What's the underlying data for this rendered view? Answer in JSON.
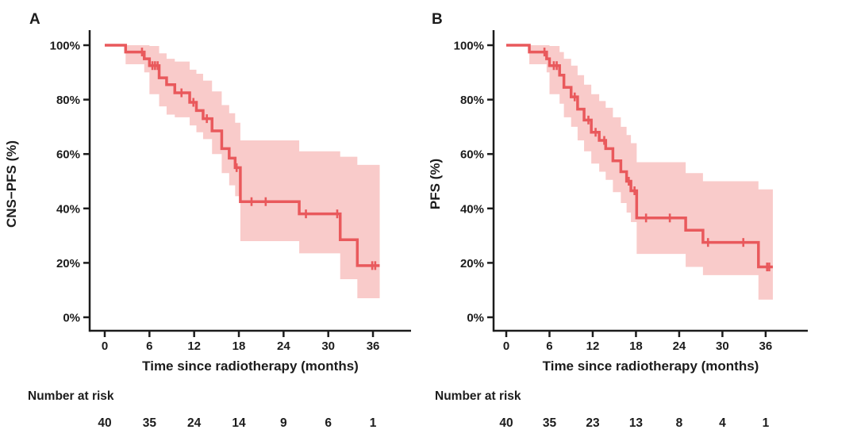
{
  "figure": {
    "background": "#ffffff",
    "curve_color": "#e9595c",
    "band_color": "#f9cbca",
    "axis_color": "#1c1c1c"
  },
  "chart_data": [
    {
      "type": "line",
      "subtype": "kaplan_meier_step_with_confidence_band",
      "panel": "A",
      "xlabel": "Time since radiotherapy (months)",
      "ylabel": "CNS−PFS (%)",
      "xlim": [
        0,
        41
      ],
      "ylim": [
        0,
        100
      ],
      "x_ticks": [
        0,
        6,
        12,
        18,
        24,
        30,
        36
      ],
      "y_ticks": [
        0,
        20,
        40,
        60,
        80,
        100
      ],
      "y_tick_labels": [
        "0%",
        "20%",
        "40%",
        "60%",
        "80%",
        "100%"
      ],
      "grid": false,
      "legend": "none",
      "series": [
        {
          "name": "CNS-PFS",
          "end_time": 36.9,
          "steps_t_pct_ciHi_ciLo": [
            [
              0,
              100,
              null,
              null
            ],
            [
              2.8,
              97.5,
              100,
              93
            ],
            [
              5.3,
              95,
              100,
              90
            ],
            [
              6.0,
              92.5,
              99.7,
              82
            ],
            [
              7.3,
              88,
              97,
              77.5
            ],
            [
              8.3,
              85.5,
              95,
              74.5
            ],
            [
              9.4,
              82.5,
              94,
              73.5
            ],
            [
              11.4,
              79,
              91,
              70.5
            ],
            [
              12.3,
              76,
              89.5,
              68
            ],
            [
              13.2,
              73,
              87,
              65.5
            ],
            [
              14.4,
              68.5,
              83,
              60
            ],
            [
              15.7,
              62,
              78,
              53
            ],
            [
              16.7,
              58.5,
              75,
              48.5
            ],
            [
              17.5,
              55,
              71.5,
              44.5
            ],
            [
              18.2,
              42.5,
              65,
              28
            ],
            [
              26.1,
              38,
              61,
              23.5
            ],
            [
              31.6,
              28.5,
              59,
              14
            ],
            [
              33.9,
              19,
              56,
              7
            ]
          ],
          "censor_marks_t_pct": [
            [
              5.0,
              97.5
            ],
            [
              6.4,
              92.5
            ],
            [
              6.75,
              92.5
            ],
            [
              7.1,
              92.5
            ],
            [
              10.3,
              82.5
            ],
            [
              11.9,
              79
            ],
            [
              13.7,
              73
            ],
            [
              17.7,
              55
            ],
            [
              19.7,
              42.5
            ],
            [
              21.6,
              42.5
            ],
            [
              27.0,
              38
            ],
            [
              31.2,
              38
            ],
            [
              35.9,
              19
            ],
            [
              36.3,
              19
            ]
          ]
        }
      ],
      "number_at_risk": {
        "label": "Number at risk",
        "times": [
          0,
          6,
          12,
          18,
          24,
          30,
          36
        ],
        "counts": [
          40,
          35,
          24,
          14,
          9,
          6,
          1
        ]
      }
    },
    {
      "type": "line",
      "subtype": "kaplan_meier_step_with_confidence_band",
      "panel": "B",
      "xlabel": "Time since radiotherapy (months)",
      "ylabel": "PFS (%)",
      "xlim": [
        0,
        41
      ],
      "ylim": [
        0,
        100
      ],
      "x_ticks": [
        0,
        6,
        12,
        18,
        24,
        30,
        36
      ],
      "y_ticks": [
        0,
        20,
        40,
        60,
        80,
        100
      ],
      "y_tick_labels": [
        "0%",
        "20%",
        "40%",
        "60%",
        "80%",
        "100%"
      ],
      "grid": false,
      "legend": "none",
      "series": [
        {
          "name": "PFS",
          "end_time": 37.0,
          "steps_t_pct_ciHi_ciLo": [
            [
              0,
              100,
              null,
              null
            ],
            [
              3.2,
              97.5,
              100,
              93
            ],
            [
              5.6,
              95,
              100,
              90
            ],
            [
              6.0,
              92.5,
              99.7,
              82
            ],
            [
              7.4,
              89,
              97.5,
              78.5
            ],
            [
              8.0,
              84.5,
              95,
              73.5
            ],
            [
              9.0,
              81,
              92.5,
              70
            ],
            [
              9.9,
              76.5,
              89,
              65
            ],
            [
              10.8,
              72.5,
              85.5,
              61
            ],
            [
              11.8,
              68,
              82,
              56.5
            ],
            [
              12.9,
              65,
              79.5,
              53.5
            ],
            [
              13.8,
              62,
              77,
              50.5
            ],
            [
              14.8,
              57.5,
              73.5,
              46
            ],
            [
              15.9,
              53.5,
              70,
              42
            ],
            [
              16.7,
              50,
              67,
              38.5
            ],
            [
              17.3,
              46.5,
              64,
              35
            ],
            [
              18.1,
              36.5,
              57,
              23.3
            ],
            [
              24.9,
              32,
              53,
              18.5
            ],
            [
              27.3,
              27.5,
              50,
              15.5
            ],
            [
              35.0,
              18.5,
              47,
              6.5
            ]
          ],
          "censor_marks_t_pct": [
            [
              5.3,
              97.5
            ],
            [
              6.6,
              92.5
            ],
            [
              7.0,
              92.5
            ],
            [
              9.5,
              81
            ],
            [
              11.4,
              72.5
            ],
            [
              12.4,
              68
            ],
            [
              13.6,
              65
            ],
            [
              17.0,
              50
            ],
            [
              17.8,
              46.5
            ],
            [
              19.4,
              36.5
            ],
            [
              22.7,
              36.5
            ],
            [
              28.0,
              27.5
            ],
            [
              32.9,
              27.5
            ],
            [
              36.2,
              18.5
            ],
            [
              36.5,
              18.5
            ]
          ]
        }
      ],
      "number_at_risk": {
        "label": "Number at risk",
        "times": [
          0,
          6,
          12,
          18,
          24,
          30,
          36
        ],
        "counts": [
          40,
          35,
          23,
          13,
          8,
          4,
          1
        ]
      }
    }
  ]
}
